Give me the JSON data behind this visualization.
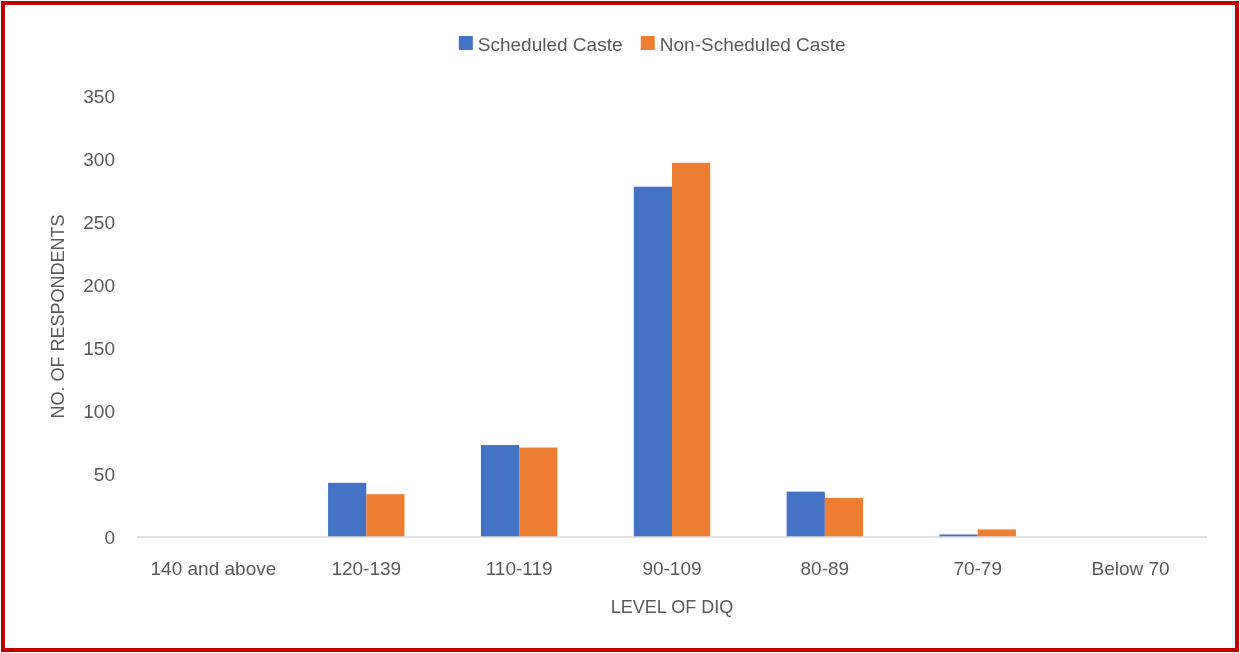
{
  "chart_data": {
    "type": "bar",
    "xlabel": "LEVEL OF DIQ",
    "ylabel": "NO. OF RESPONDENTS",
    "categories": [
      "140 and above",
      "120-139",
      "110-119",
      "90-109",
      "80-89",
      "70-79",
      "Below 70"
    ],
    "series": [
      {
        "name": "Scheduled Caste",
        "color": "#4472c4",
        "values": [
          0,
          43,
          73,
          278,
          36,
          2,
          0
        ]
      },
      {
        "name": "Non-Scheduled Caste",
        "color": "#ed7d31",
        "values": [
          0,
          34,
          71,
          297,
          31,
          6,
          0
        ]
      }
    ],
    "ylim": [
      0,
      350
    ],
    "yticks": [
      0,
      50,
      100,
      150,
      200,
      250,
      300,
      350
    ],
    "grid": false,
    "legend": "top"
  }
}
